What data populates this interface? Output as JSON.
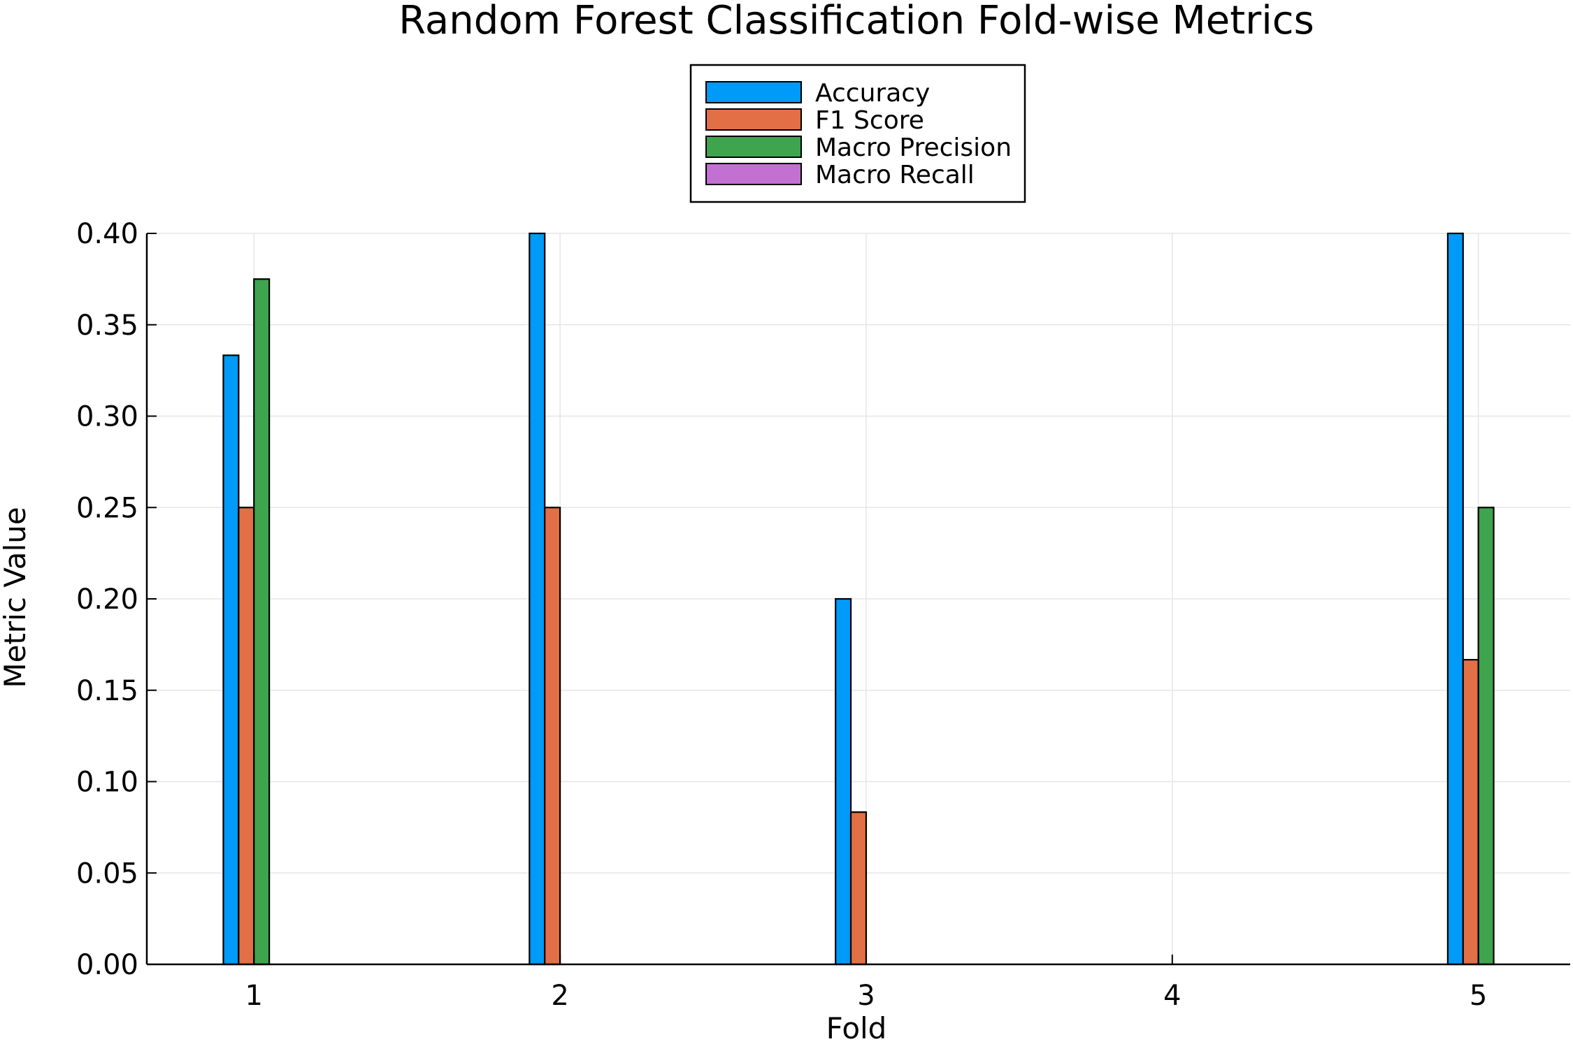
{
  "chart_data": {
    "type": "bar",
    "title": "Random Forest Classification Fold-wise Metrics",
    "xlabel": "Fold",
    "ylabel": "Metric Value",
    "categories": [
      "1",
      "2",
      "3",
      "4",
      "5"
    ],
    "x": [
      1,
      2,
      3,
      4,
      5
    ],
    "xlim": [
      0.65,
      5.3
    ],
    "ylim": [
      0,
      0.4
    ],
    "yticks": [
      "0.00",
      "0.05",
      "0.10",
      "0.15",
      "0.20",
      "0.25",
      "0.30",
      "0.35",
      "0.40"
    ],
    "grid": true,
    "legend_position": "top-center",
    "series": [
      {
        "name": "Accuracy",
        "color": "#009af9",
        "values": [
          0.3333,
          0.4,
          0.2,
          0.0,
          0.4
        ]
      },
      {
        "name": "F1 Score",
        "color": "#e26f46",
        "values": [
          0.25,
          0.25,
          0.0833,
          0.0,
          0.1667
        ]
      },
      {
        "name": "Macro Precision",
        "color": "#3ea44e",
        "values": [
          0.375,
          0.0,
          0.0,
          0.0,
          0.25
        ]
      },
      {
        "name": "Macro Recall",
        "color": "#c271d2",
        "values": [
          0.0,
          0.0,
          0.0,
          0.0,
          0.0
        ]
      }
    ]
  }
}
